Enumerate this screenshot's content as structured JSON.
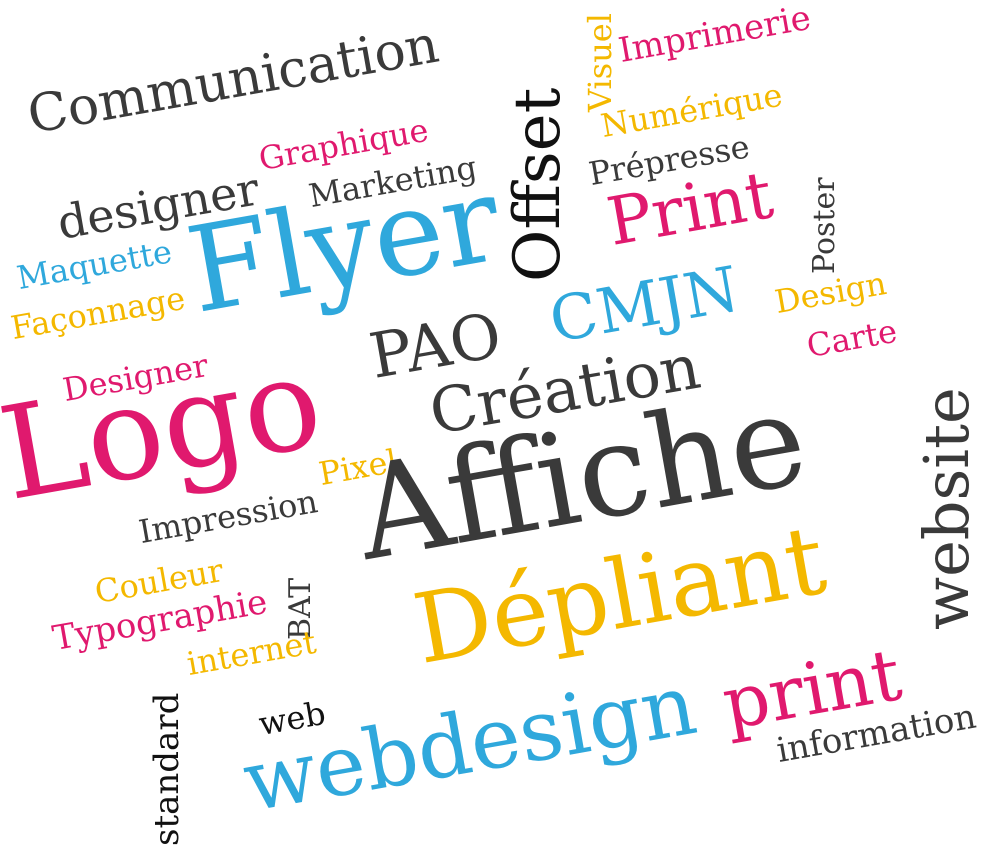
{
  "colors": {
    "magenta": "#e0196e",
    "cyan": "#2fa8dc",
    "yellow": "#f4b800",
    "dark": "#3a3a3a",
    "black": "#111111"
  },
  "words": {
    "communication": "Communication",
    "graphique": "Graphique",
    "designer_lower": "designer",
    "marketing": "Marketing",
    "flyer": "Flyer",
    "offset": "Offset",
    "visuel": "Visuel",
    "imprimerie": "Imprimerie",
    "numerique": "Numérique",
    "prepresse": "Prépresse",
    "print_title": "Print",
    "poster": "Poster",
    "maquette": "Maquette",
    "faconnage": "Façonnage",
    "pao": "PAO",
    "cmjn": "CMJN",
    "design": "Design",
    "carte": "Carte",
    "designer_cap": "Designer",
    "creation": "Création",
    "logo": "Logo",
    "website": "website",
    "pixel": "Pixel",
    "impression": "Impression",
    "affiche": "Affiche",
    "couleur": "Couleur",
    "bat": "BAT",
    "typographie": "Typographie",
    "depliant": "Dépliant",
    "internet": "internet",
    "standard": "standard",
    "web": "web",
    "print_lower": "print",
    "information": "information",
    "webdesign": "webdesign"
  }
}
